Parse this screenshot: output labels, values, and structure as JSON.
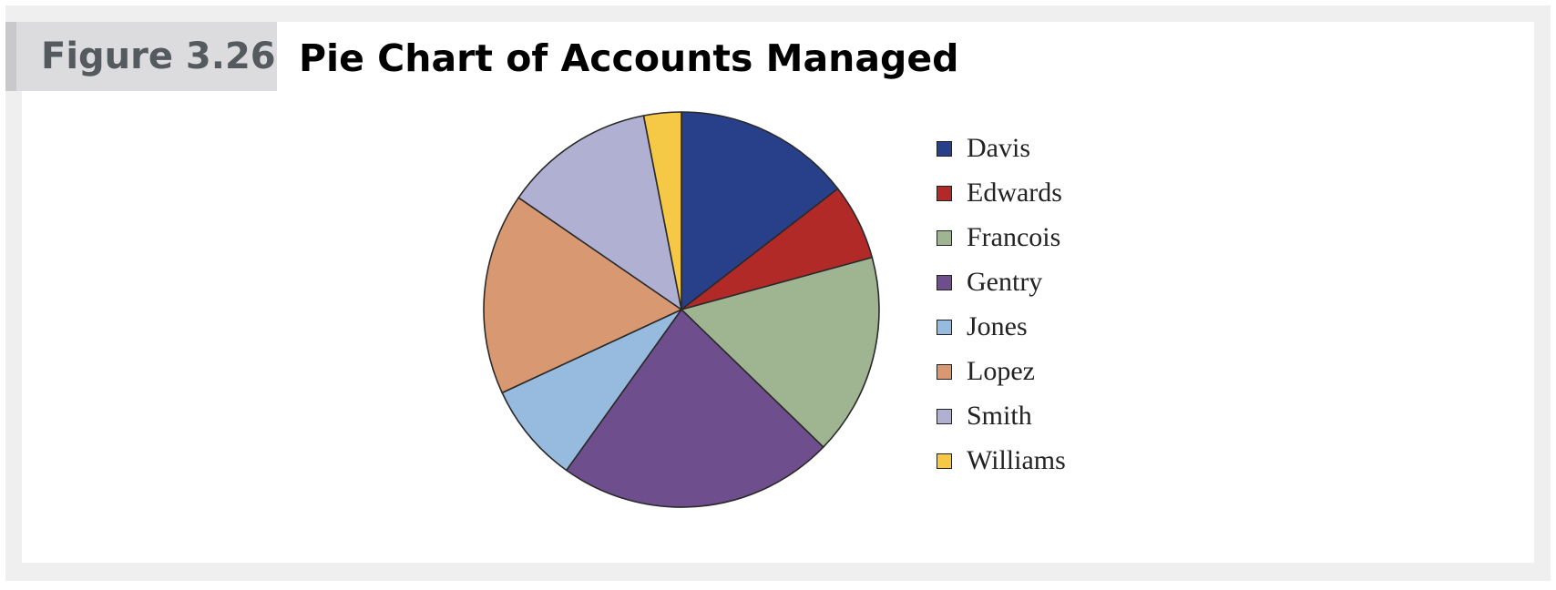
{
  "figure": {
    "label": "Figure 3.26",
    "title": "Pie Chart of Accounts Managed"
  },
  "chart_data": {
    "type": "pie",
    "title": "Pie Chart of Accounts Managed",
    "start_angle_deg": 0,
    "direction": "clockwise",
    "legend_position": "right",
    "slices": [
      {
        "label": "Davis",
        "value": 14.7,
        "color": "#283f8a"
      },
      {
        "label": "Edwards",
        "value": 6.3,
        "color": "#b12a27"
      },
      {
        "label": "Francois",
        "value": 16.7,
        "color": "#9fb491"
      },
      {
        "label": "Gentry",
        "value": 22.9,
        "color": "#6e4e8c"
      },
      {
        "label": "Jones",
        "value": 8.3,
        "color": "#97badf"
      },
      {
        "label": "Lopez",
        "value": 16.7,
        "color": "#d89871"
      },
      {
        "label": "Smith",
        "value": 12.5,
        "color": "#b0b1d2"
      },
      {
        "label": "Williams",
        "value": 3.1,
        "color": "#f5c845"
      }
    ]
  }
}
